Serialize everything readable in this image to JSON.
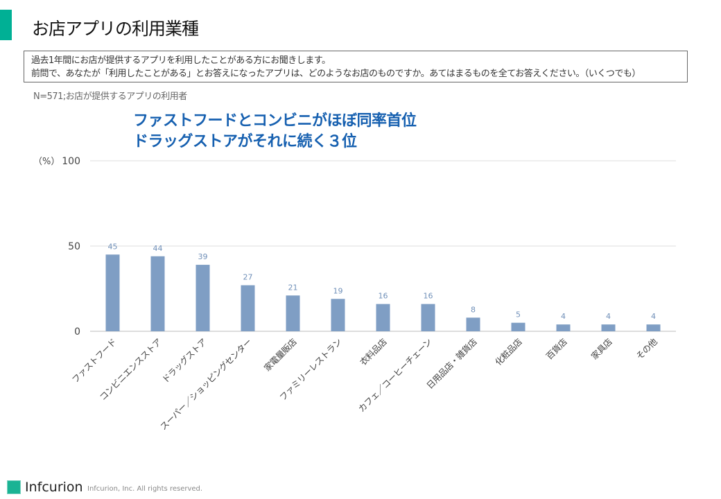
{
  "header": {
    "title": "お店アプリの利用業種"
  },
  "question": {
    "line1": "過去1年間にお店が提供するアプリを利用したことがある方にお聞きします。",
    "line2": "前問で、あなたが「利用したことがある」とお答えになったアプリは、どのようなお店のものですか。あてはまるものを全てお答えください。（いくつでも）"
  },
  "note": "N=571;お店が提供するアプリの利用者",
  "headline": {
    "line1": "ファストフードとコンビニがほぼ同率首位",
    "line2": "ドラッグストアがそれに続く３位"
  },
  "chart_data": {
    "type": "bar",
    "ylabel": "（%）",
    "ylim": [
      0,
      100
    ],
    "yticks": [
      0,
      50,
      100
    ],
    "grid": true,
    "bar_color": "#7f9ec4",
    "categories": [
      "ファストフード",
      "コンビニエンスストア",
      "ドラッグストア",
      "スーパー／ショッピングセンター",
      "家電量販店",
      "ファミリーレストラン",
      "衣料品店",
      "カフェ／コーヒーチェーン",
      "日用品店・雑貨店",
      "化粧品店",
      "百貨店",
      "家具店",
      "その他"
    ],
    "values": [
      45,
      44,
      39,
      27,
      21,
      19,
      16,
      16,
      8,
      5,
      4,
      4,
      4
    ]
  },
  "footer": {
    "logo": "Infcurion",
    "copyright": "Infcurion, Inc.  All rights reserved."
  }
}
